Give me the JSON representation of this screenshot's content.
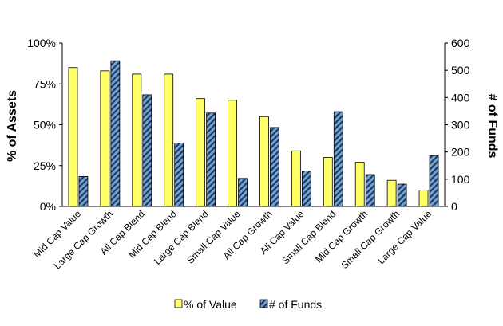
{
  "chart_data": {
    "type": "bar",
    "categories": [
      "Mid Cap Value",
      "Large Cap Growth",
      "All Cap Blend",
      "Mid Cap Blend",
      "Large Cap Blend",
      "Small Cap Value",
      "All Cap Growth",
      "All Cap Value",
      "Small Cap Blend",
      "Mid Cap Growth",
      "Small Cap Growth",
      "Large Cap Value"
    ],
    "series": [
      {
        "name": "% of Value",
        "axis": "left",
        "unit": "%",
        "color": "#ffff66",
        "values": [
          85,
          83,
          81,
          81,
          66,
          65,
          55,
          34,
          30,
          27,
          16,
          10
        ]
      },
      {
        "name": "# of Funds",
        "axis": "right",
        "color": "#6699cc",
        "pattern": "diagonal-stripes",
        "values": [
          110,
          535,
          410,
          233,
          343,
          103,
          290,
          130,
          348,
          117,
          82,
          187
        ]
      }
    ],
    "ylabel": "% of Assets",
    "y2label": "# of Funds",
    "ylim": [
      0,
      100
    ],
    "y2lim": [
      0,
      600
    ],
    "yticks": [
      "0%",
      "25%",
      "50%",
      "75%",
      "100%"
    ],
    "y2ticks": [
      "0",
      "100",
      "200",
      "300",
      "400",
      "500",
      "600"
    ],
    "grid": false,
    "legend_position": "bottom"
  }
}
